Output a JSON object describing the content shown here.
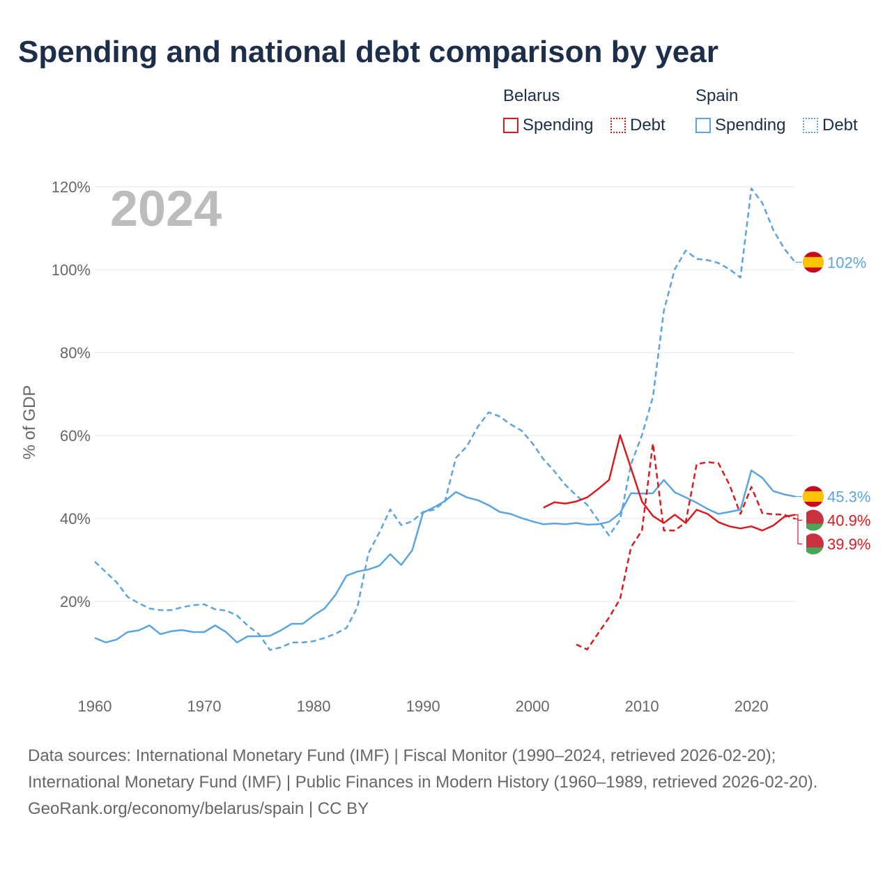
{
  "title": "Spending and national debt comparison by year",
  "legend": {
    "groups": [
      {
        "name": "Belarus",
        "color": "#d91a1f",
        "items": [
          {
            "label": "Spending",
            "style": "solid"
          },
          {
            "label": "Debt",
            "style": "dotted"
          }
        ]
      },
      {
        "name": "Spain",
        "color": "#5aa4e0",
        "items": [
          {
            "label": "Spending",
            "style": "solid"
          },
          {
            "label": "Debt",
            "style": "dotted"
          }
        ]
      }
    ]
  },
  "chart_data": {
    "type": "line",
    "title": "Spending and national debt comparison by year",
    "ylabel": "% of GDP",
    "xlabel": "",
    "year_label": "2024",
    "xlim": [
      1960,
      2024
    ],
    "ylim": [
      0,
      120
    ],
    "x_ticks": [
      1960,
      1970,
      1980,
      1990,
      2000,
      2010,
      2020
    ],
    "y_ticks": [
      20,
      40,
      60,
      80,
      100,
      120
    ],
    "y_tick_labels": [
      "20%",
      "40%",
      "60%",
      "80%",
      "100%",
      "120%"
    ],
    "grid": true,
    "series": [
      {
        "name": "Spain Spending",
        "country": "Spain",
        "color": "#5aa4e0",
        "dash": "solid",
        "end_label": "45.3%",
        "end_value": 45.3,
        "flag": "spain-flag-icon",
        "points": [
          [
            1960,
            11.2
          ],
          [
            1961,
            10.1
          ],
          [
            1962,
            10.8
          ],
          [
            1963,
            12.6
          ],
          [
            1964,
            13.0
          ],
          [
            1965,
            14.2
          ],
          [
            1966,
            12.1
          ],
          [
            1967,
            12.8
          ],
          [
            1968,
            13.1
          ],
          [
            1969,
            12.6
          ],
          [
            1970,
            12.6
          ],
          [
            1971,
            14.2
          ],
          [
            1972,
            12.6
          ],
          [
            1973,
            10.1
          ],
          [
            1974,
            11.6
          ],
          [
            1975,
            11.6
          ],
          [
            1976,
            11.7
          ],
          [
            1977,
            13.0
          ],
          [
            1978,
            14.6
          ],
          [
            1979,
            14.6
          ],
          [
            1980,
            16.6
          ],
          [
            1981,
            18.3
          ],
          [
            1982,
            21.6
          ],
          [
            1983,
            26.2
          ],
          [
            1984,
            27.2
          ],
          [
            1985,
            27.7
          ],
          [
            1986,
            28.6
          ],
          [
            1987,
            31.4
          ],
          [
            1988,
            28.8
          ],
          [
            1989,
            32.3
          ],
          [
            1990,
            41.4
          ],
          [
            1991,
            42.7
          ],
          [
            1992,
            44.2
          ],
          [
            1993,
            46.4
          ],
          [
            1994,
            45.1
          ],
          [
            1995,
            44.4
          ],
          [
            1996,
            43.2
          ],
          [
            1997,
            41.6
          ],
          [
            1998,
            41.1
          ],
          [
            1999,
            40.1
          ],
          [
            2000,
            39.3
          ],
          [
            2001,
            38.6
          ],
          [
            2002,
            38.8
          ],
          [
            2003,
            38.6
          ],
          [
            2004,
            38.9
          ],
          [
            2005,
            38.5
          ],
          [
            2006,
            38.6
          ],
          [
            2007,
            39.2
          ],
          [
            2008,
            41.3
          ],
          [
            2009,
            46.1
          ],
          [
            2010,
            46.0
          ],
          [
            2011,
            46.1
          ],
          [
            2012,
            49.3
          ],
          [
            2013,
            46.3
          ],
          [
            2014,
            45.1
          ],
          [
            2015,
            43.8
          ],
          [
            2016,
            42.3
          ],
          [
            2017,
            41.1
          ],
          [
            2018,
            41.6
          ],
          [
            2019,
            42.1
          ],
          [
            2020,
            51.6
          ],
          [
            2021,
            49.8
          ],
          [
            2022,
            46.6
          ],
          [
            2023,
            45.8
          ],
          [
            2024,
            45.3
          ]
        ]
      },
      {
        "name": "Spain Debt",
        "country": "Spain",
        "color": "#5aa4e0",
        "dash": "dashed",
        "end_label": "102%",
        "end_value": 101.8,
        "flag": "spain-flag-icon",
        "points": [
          [
            1960,
            29.6
          ],
          [
            1961,
            27.1
          ],
          [
            1962,
            24.6
          ],
          [
            1963,
            21.1
          ],
          [
            1964,
            19.6
          ],
          [
            1965,
            18.3
          ],
          [
            1966,
            17.9
          ],
          [
            1967,
            17.9
          ],
          [
            1968,
            18.6
          ],
          [
            1969,
            19.1
          ],
          [
            1970,
            19.3
          ],
          [
            1971,
            18.1
          ],
          [
            1972,
            17.8
          ],
          [
            1973,
            16.6
          ],
          [
            1974,
            14.1
          ],
          [
            1975,
            12.1
          ],
          [
            1976,
            8.3
          ],
          [
            1977,
            8.9
          ],
          [
            1978,
            10.1
          ],
          [
            1979,
            10.1
          ],
          [
            1980,
            10.4
          ],
          [
            1981,
            11.2
          ],
          [
            1982,
            12.2
          ],
          [
            1983,
            13.6
          ],
          [
            1984,
            18.6
          ],
          [
            1985,
            31.6
          ],
          [
            1986,
            36.6
          ],
          [
            1987,
            42.2
          ],
          [
            1988,
            38.4
          ],
          [
            1989,
            39.3
          ],
          [
            1990,
            41.6
          ],
          [
            1991,
            42.1
          ],
          [
            1992,
            44.1
          ],
          [
            1993,
            54.6
          ],
          [
            1994,
            57.4
          ],
          [
            1995,
            62.1
          ],
          [
            1996,
            65.6
          ],
          [
            1997,
            64.6
          ],
          [
            1998,
            62.7
          ],
          [
            1999,
            61.2
          ],
          [
            2000,
            58.1
          ],
          [
            2001,
            54.3
          ],
          [
            2002,
            51.4
          ],
          [
            2003,
            48.1
          ],
          [
            2004,
            45.6
          ],
          [
            2005,
            43.3
          ],
          [
            2006,
            39.6
          ],
          [
            2007,
            35.9
          ],
          [
            2008,
            39.7
          ],
          [
            2009,
            53.1
          ],
          [
            2010,
            60.1
          ],
          [
            2011,
            69.3
          ],
          [
            2012,
            90.1
          ],
          [
            2013,
            100.1
          ],
          [
            2014,
            104.6
          ],
          [
            2015,
            102.6
          ],
          [
            2016,
            102.3
          ],
          [
            2017,
            101.6
          ],
          [
            2018,
            100.1
          ],
          [
            2019,
            98.1
          ],
          [
            2020,
            119.6
          ],
          [
            2021,
            116.1
          ],
          [
            2022,
            109.6
          ],
          [
            2023,
            105.1
          ],
          [
            2024,
            101.8
          ]
        ]
      },
      {
        "name": "Belarus Spending",
        "country": "Belarus",
        "color": "#d91a1f",
        "dash": "solid",
        "end_label": "40.9%",
        "end_value": 40.9,
        "flag": "belarus-flag-icon",
        "points": [
          [
            2001,
            42.6
          ],
          [
            2002,
            43.9
          ],
          [
            2003,
            43.6
          ],
          [
            2004,
            44.1
          ],
          [
            2005,
            45.1
          ],
          [
            2006,
            47.1
          ],
          [
            2007,
            49.3
          ],
          [
            2008,
            60.1
          ],
          [
            2009,
            52.1
          ],
          [
            2010,
            44.1
          ],
          [
            2011,
            40.6
          ],
          [
            2012,
            38.9
          ],
          [
            2013,
            40.9
          ],
          [
            2014,
            38.9
          ],
          [
            2015,
            42.1
          ],
          [
            2016,
            41.1
          ],
          [
            2017,
            39.1
          ],
          [
            2018,
            38.1
          ],
          [
            2019,
            37.6
          ],
          [
            2020,
            38.1
          ],
          [
            2021,
            37.1
          ],
          [
            2022,
            38.3
          ],
          [
            2023,
            40.4
          ],
          [
            2024,
            40.9
          ]
        ]
      },
      {
        "name": "Belarus Debt",
        "country": "Belarus",
        "color": "#d91a1f",
        "dash": "dashed",
        "end_label": "39.9%",
        "end_value": 39.9,
        "flag": "belarus-flag-icon",
        "points": [
          [
            2004,
            9.6
          ],
          [
            2005,
            8.4
          ],
          [
            2006,
            12.3
          ],
          [
            2007,
            16.1
          ],
          [
            2008,
            20.6
          ],
          [
            2009,
            33.1
          ],
          [
            2010,
            37.1
          ],
          [
            2011,
            58.1
          ],
          [
            2012,
            37.1
          ],
          [
            2013,
            37.1
          ],
          [
            2014,
            39.1
          ],
          [
            2015,
            53.1
          ],
          [
            2016,
            53.6
          ],
          [
            2017,
            53.3
          ],
          [
            2018,
            48.1
          ],
          [
            2019,
            41.1
          ],
          [
            2020,
            47.6
          ],
          [
            2021,
            41.3
          ],
          [
            2022,
            41.0
          ],
          [
            2023,
            40.9
          ],
          [
            2024,
            39.9
          ]
        ]
      }
    ]
  },
  "footer": {
    "sources": "Data sources: International Monetary Fund (IMF) | Fiscal Monitor (1990–2024, retrieved 2026-02-20); International Monetary Fund (IMF) | Public Finances in Modern History (1960–1989, retrieved 2026-02-20).",
    "credit": "GeoRank.org/economy/belarus/spain | CC BY"
  }
}
